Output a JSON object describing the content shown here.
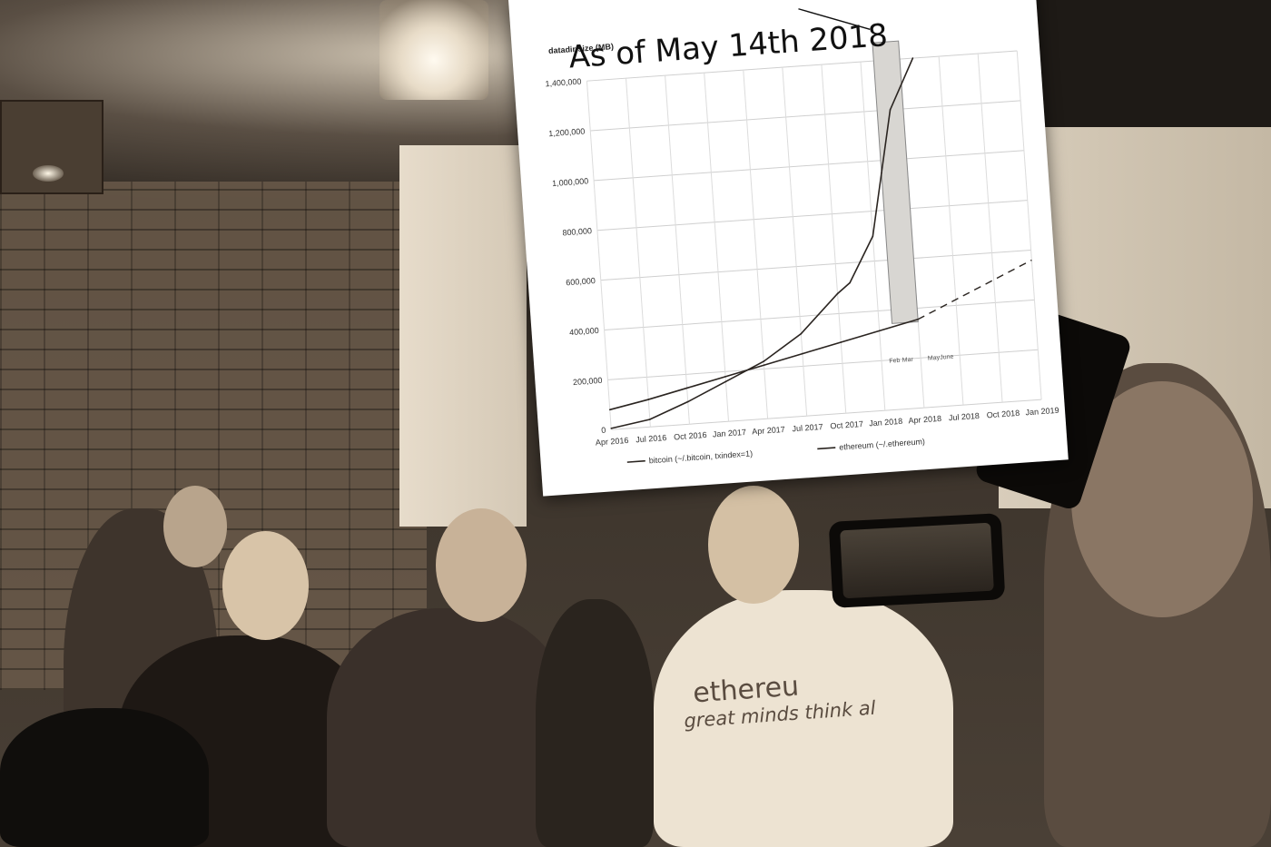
{
  "photo": {
    "description_colors": {
      "sepia_dark": "#2a241e",
      "sepia_light": "#e7dccb",
      "paper": "#ffffff"
    }
  },
  "board": {
    "annotation": "As of May 14th 2018",
    "shirt_logo": "ethereu",
    "shirt_slogan": "great minds think al"
  },
  "chart_data": {
    "type": "line",
    "title": "",
    "ylabel": "datadir size (MB)",
    "xlabel": "",
    "x_ticks": [
      "Apr 2016",
      "Jul 2016",
      "Oct 2016",
      "Jan 2017",
      "Apr 2017",
      "Jul 2017",
      "Oct 2017",
      "Jan 2018",
      "Apr 2018",
      "Jul 2018",
      "Oct 2018",
      "Jan 2019"
    ],
    "y_ticks": [
      "0",
      "200,000",
      "400,000",
      "600,000",
      "800,000",
      "1,000,000",
      "1,200,000",
      "1,400,000"
    ],
    "ylim": [
      0,
      1400000
    ],
    "sub_ticks": [
      "Feb",
      "Mar",
      "May",
      "June"
    ],
    "series": [
      {
        "name": "bitcoin (~/.bitcoin, txindex=1)",
        "x": [
          "Apr 2016",
          "Jul 2016",
          "Oct 2016",
          "Jan 2017",
          "Apr 2017",
          "Jul 2017",
          "Oct 2017",
          "Jan 2018",
          "Apr 2018"
        ],
        "values": [
          80000,
          110000,
          145000,
          180000,
          215000,
          250000,
          285000,
          320000,
          355000
        ]
      },
      {
        "name": "ethereum (~/.ethereum)",
        "x": [
          "Apr 2016",
          "Jul 2016",
          "Oct 2016",
          "Jan 2017",
          "Apr 2017",
          "Jul 2017",
          "Oct 2017",
          "Nov 2017",
          "Jan 2018",
          "Feb 2018",
          "Mar 2018",
          "May 2018"
        ],
        "values": [
          5000,
          30000,
          90000,
          160000,
          230000,
          330000,
          480000,
          520000,
          700000,
          950000,
          1200000,
          1400000
        ]
      }
    ],
    "projection": {
      "style": "dashed",
      "from": "Apr 2018",
      "to": "Jan 2019",
      "values": [
        355000,
        560000
      ]
    },
    "highlight_band": {
      "from": "Feb 2018",
      "to": "Apr 2018"
    },
    "legend": "bottom"
  }
}
